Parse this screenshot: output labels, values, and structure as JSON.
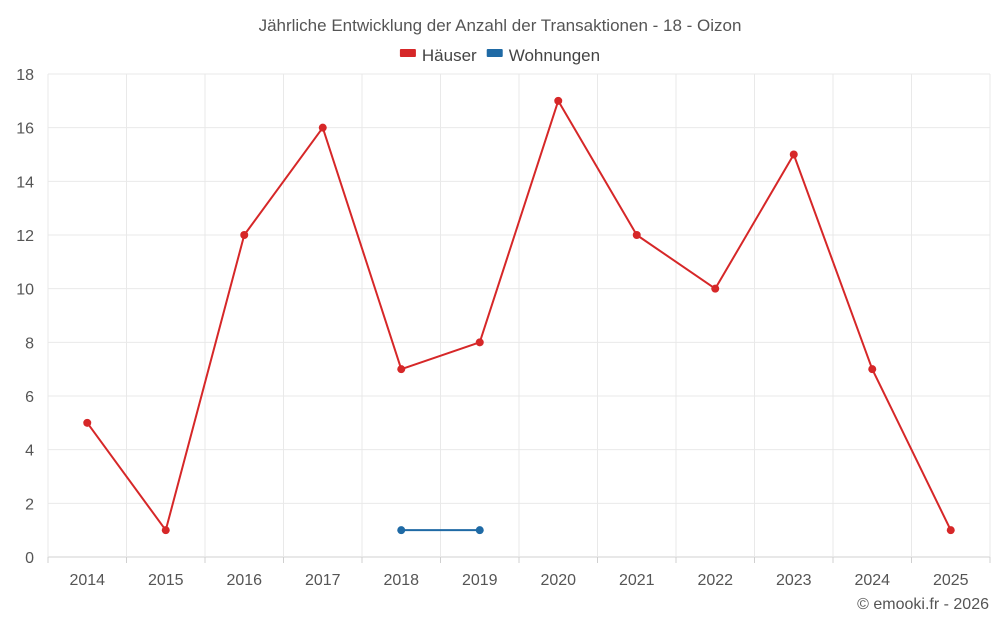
{
  "chart_data": {
    "type": "line",
    "title": "Jährliche Entwicklung der Anzahl der Transaktionen - 18 - Oizon",
    "categories": [
      "2014",
      "2015",
      "2016",
      "2017",
      "2018",
      "2019",
      "2020",
      "2021",
      "2022",
      "2023",
      "2024",
      "2025"
    ],
    "series": [
      {
        "name": "Häuser",
        "color": "#d62728",
        "values": [
          5,
          1,
          12,
          16,
          7,
          8,
          17,
          12,
          10,
          15,
          7,
          1
        ]
      },
      {
        "name": "Wohnungen",
        "color": "#1f6aa5",
        "values": [
          null,
          null,
          null,
          null,
          1,
          1,
          null,
          null,
          null,
          null,
          null,
          null
        ]
      }
    ],
    "ylim": [
      0,
      18
    ],
    "yticks": [
      0,
      2,
      4,
      6,
      8,
      10,
      12,
      14,
      16,
      18
    ],
    "xlabel": "",
    "ylabel": "",
    "grid": true,
    "legend_position": "top-center"
  },
  "credit": "© emooki.fr - 2026"
}
